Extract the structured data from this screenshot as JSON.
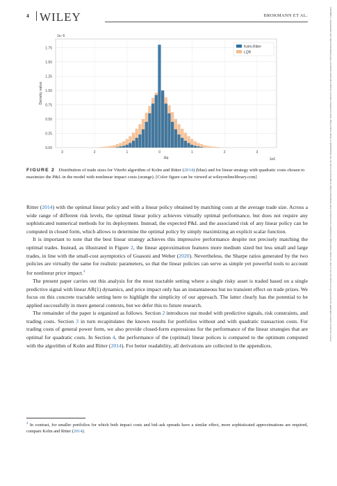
{
  "header": {
    "page_number": "4",
    "logo": "WILEY",
    "running_head": "BROKMANN ET AL."
  },
  "figure": {
    "chart_data": {
      "type": "bar",
      "offset_text": "1e−6",
      "x_offset_text": "1e6",
      "ylabel": "Density value",
      "xlabel": "Δq",
      "xlim": [
        -3.2,
        3.6
      ],
      "ylim": [
        0,
        1.9
      ],
      "xticks": [
        "3",
        "2",
        "1",
        "0",
        "1",
        "2",
        "3"
      ],
      "yticks": [
        "0.00",
        "0.25",
        "0.50",
        "0.75",
        "1.00",
        "1.25",
        "1.50",
        "1.75"
      ],
      "legend_position": "top-right",
      "grid": true,
      "bin_width": 0.1,
      "series": [
        {
          "name": "Kolm-Ritter",
          "color": "#2f6f9f",
          "x": [
            -1.3,
            -1.2,
            -1.1,
            -1.0,
            -0.9,
            -0.8,
            -0.7,
            -0.6,
            -0.5,
            -0.4,
            -0.3,
            -0.2,
            -0.1,
            0.0,
            0.1,
            0.2,
            0.3,
            0.4,
            0.5,
            0.6,
            0.7,
            0.8,
            0.9,
            1.0,
            1.1,
            1.2,
            1.3
          ],
          "values": [
            0.01,
            0.02,
            0.03,
            0.05,
            0.08,
            0.12,
            0.17,
            0.23,
            0.32,
            0.45,
            0.6,
            0.77,
            0.92,
            1.8,
            1.0,
            0.77,
            0.6,
            0.45,
            0.32,
            0.23,
            0.17,
            0.12,
            0.08,
            0.05,
            0.03,
            0.02,
            0.01
          ]
        },
        {
          "name": "LQR",
          "color": "#f4b98a",
          "x": [
            -1.9,
            -1.8,
            -1.7,
            -1.6,
            -1.5,
            -1.4,
            -1.3,
            -1.2,
            -1.1,
            -1.0,
            -0.9,
            -0.8,
            -0.7,
            -0.6,
            -0.5,
            -0.4,
            -0.3,
            -0.2,
            -0.1,
            0.0,
            0.1,
            0.2,
            0.3,
            0.4,
            0.5,
            0.6,
            0.7,
            0.8,
            0.9,
            1.0,
            1.1,
            1.2,
            1.3,
            1.4,
            1.5,
            1.6,
            1.7,
            1.8,
            1.9
          ],
          "values": [
            0.005,
            0.01,
            0.015,
            0.02,
            0.03,
            0.04,
            0.06,
            0.08,
            0.11,
            0.15,
            0.2,
            0.26,
            0.33,
            0.41,
            0.5,
            0.61,
            0.73,
            0.87,
            0.96,
            1.0,
            0.97,
            0.88,
            0.74,
            0.62,
            0.5,
            0.41,
            0.33,
            0.26,
            0.2,
            0.15,
            0.11,
            0.08,
            0.06,
            0.04,
            0.03,
            0.02,
            0.015,
            0.01,
            0.005
          ]
        }
      ]
    },
    "caption_label": "FIGURE 2",
    "caption_pre": "Distribution of trade sizes for Viterbi algorithm of Kolm and Ritter (",
    "caption_cite": "2014",
    "caption_post": ") (blue) and for linear strategy with quadratic costs chosen to maximize the P&L in the model with nonlinear impact costs (orange). [Color figure can be viewed at wileyonlinelibrary.com]"
  },
  "body": {
    "p1_cite_author": "Ritter (",
    "p1_cite_year": "2014",
    "p1_text": ") with the optimal linear policy and with a linear policy obtained by matching costs at the average trade size. Across a wide range of different risk levels, the optimal linear policy achieves virtually optimal performance, but does not require any sophisticated numerical methods for its deployment. Instead, the expected P&L and the associated risk of any linear policy can be computed in closed form, which allows to determine the optimal policy by simply maximizing an explicit scalar function.",
    "p2_a": "It is important to note that the best linear strategy achieves this impressive performance despite not precisely matching the optimal trades. Instead, as illustrated in Figure ",
    "p2_fig": "2",
    "p2_b": ", the linear approximation features more medium sized but less small and large trades, in line with the small-cost asymptotics of Guasoni and Weber (",
    "p2_year": "2020",
    "p2_c": "). Nevertheless, the Sharpe ratios generated by the two policies are virtually the same for realistic parameters, so that the linear policies can serve as simple yet powerful tools to account for nonlinear price impact.",
    "p2_sup": "4",
    "p3": "The present paper carries out this analysis for the most tractable setting where a single risky asset is traded based on a single predictive signal with linear AR(1) dynamics, and price impact only has an instantaneous but no transient effect on trade prizes. We focus on this concrete tractable setting here to highlight the simplicity of our approach. The latter clearly has the potential to be applied successfully in more general contexts, but we defer this to future research.",
    "p4_a": "The remainder of the paper is organized as follows. Section ",
    "p4_s2": "2",
    "p4_b": " introduces our model with predictive signals, risk constraints, and trading costs. Section ",
    "p4_s3": "3",
    "p4_c": " in turn recapitulates the known results for portfolios without and with quadratic transaction costs. For trading costs of general power form, we also provide closed-form expressions for the performance of the linear strategies that are optimal for quadratic costs. In Section ",
    "p4_s4": "4",
    "p4_d": ", the performance of the (optimal) linear polices is compared to the optimum computed with the algorithm of Kolm and Ritter (",
    "p4_year": "2014",
    "p4_e": "). For better readability, all derivations are collected in the appendices."
  },
  "footnote": {
    "mark": "4",
    "text": "In contrast, for smaller portfolios for which both impact costs and bid–ask spreads have a similar effect, more sophisticated approximations are required, compare Kolm and Ritter (",
    "year": "2014",
    "end": ")."
  },
  "sidebar": {
    "text": "14679965, 0, Downloaded from https://onlinelibrary.wiley.com/doi/10.1111/mafi.12406 by Cochrane Canada Provision, Wiley Online Library on [09/03/2024]. See the Terms and Conditions (https://onlinelibrary.wiley.com/terms-and-conditions) on Wiley Online Library for rules of use; OA articles are governed by the applicable Creative Commons License"
  }
}
